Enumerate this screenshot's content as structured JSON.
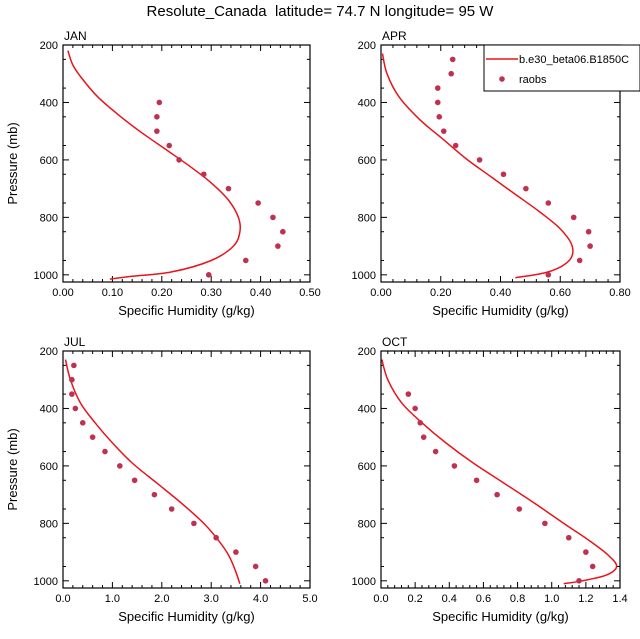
{
  "title": "Resolute_Canada  latitude= 74.7 N longitude= 95 W",
  "legend": {
    "model_label": "b.e30_beta06.B1850C",
    "obs_label": "raobs",
    "placement": "top-right of APR panel"
  },
  "colors": {
    "model": "#e8141c",
    "obs": "#c03050",
    "axis": "#000000"
  },
  "chart_data": [
    {
      "type": "line",
      "panel_label": "JAN",
      "xlabel": "Specific Humidity (g/kg)",
      "ylabel": "Pressure (mb)",
      "xlim": [
        0,
        0.5
      ],
      "ylim": [
        1025,
        200
      ],
      "y_inverted": true,
      "xticks": [
        "0.00",
        "0.10",
        "0.20",
        "0.30",
        "0.40",
        "0.50"
      ],
      "yticks": [
        "200",
        "400",
        "600",
        "800",
        "1000"
      ],
      "series": [
        {
          "name": "b.e30_beta06.B1850C",
          "style": "line",
          "points": [
            [
              0.01,
              220
            ],
            [
              0.02,
              270
            ],
            [
              0.04,
              320
            ],
            [
              0.07,
              380
            ],
            [
              0.11,
              440
            ],
            [
              0.155,
              500
            ],
            [
              0.205,
              560
            ],
            [
              0.255,
              620
            ],
            [
              0.3,
              680
            ],
            [
              0.335,
              740
            ],
            [
              0.355,
              800
            ],
            [
              0.358,
              850
            ],
            [
              0.345,
              900
            ],
            [
              0.3,
              950
            ],
            [
              0.22,
              990
            ],
            [
              0.14,
              1005
            ],
            [
              0.095,
              1015
            ]
          ]
        },
        {
          "name": "raobs",
          "style": "marker",
          "points": [
            [
              0.195,
              400
            ],
            [
              0.19,
              450
            ],
            [
              0.19,
              500
            ],
            [
              0.215,
              550
            ],
            [
              0.235,
              600
            ],
            [
              0.285,
              650
            ],
            [
              0.335,
              700
            ],
            [
              0.395,
              750
            ],
            [
              0.425,
              800
            ],
            [
              0.445,
              850
            ],
            [
              0.435,
              900
            ],
            [
              0.37,
              950
            ],
            [
              0.295,
              1000
            ]
          ]
        }
      ]
    },
    {
      "type": "line",
      "panel_label": "APR",
      "xlabel": "Specific Humidity (g/kg)",
      "ylabel": "",
      "xlim": [
        0,
        0.8
      ],
      "ylim": [
        1025,
        200
      ],
      "y_inverted": true,
      "xticks": [
        "0.00",
        "0.20",
        "0.40",
        "0.60",
        "0.80"
      ],
      "yticks": [
        "200",
        "400",
        "600",
        "800",
        "1000"
      ],
      "series": [
        {
          "name": "b.e30_beta06.B1850C",
          "style": "line",
          "points": [
            [
              0.005,
              230
            ],
            [
              0.02,
              300
            ],
            [
              0.06,
              380
            ],
            [
              0.13,
              460
            ],
            [
              0.21,
              530
            ],
            [
              0.29,
              600
            ],
            [
              0.37,
              660
            ],
            [
              0.45,
              720
            ],
            [
              0.53,
              780
            ],
            [
              0.6,
              840
            ],
            [
              0.64,
              900
            ],
            [
              0.63,
              950
            ],
            [
              0.56,
              990
            ],
            [
              0.45,
              1010
            ]
          ]
        },
        {
          "name": "raobs",
          "style": "marker",
          "points": [
            [
              0.24,
              250
            ],
            [
              0.235,
              300
            ],
            [
              0.19,
              350
            ],
            [
              0.19,
              400
            ],
            [
              0.195,
              450
            ],
            [
              0.21,
              500
            ],
            [
              0.25,
              550
            ],
            [
              0.33,
              600
            ],
            [
              0.41,
              650
            ],
            [
              0.485,
              700
            ],
            [
              0.56,
              750
            ],
            [
              0.645,
              800
            ],
            [
              0.695,
              850
            ],
            [
              0.7,
              900
            ],
            [
              0.665,
              950
            ],
            [
              0.56,
              1000
            ]
          ]
        }
      ]
    },
    {
      "type": "line",
      "panel_label": "JUL",
      "xlabel": "Specific Humidity (g/kg)",
      "ylabel": "Pressure (mb)",
      "xlim": [
        0,
        5.0
      ],
      "ylim": [
        1025,
        200
      ],
      "y_inverted": true,
      "xticks": [
        "0.0",
        "1.0",
        "2.0",
        "3.0",
        "4.0",
        "5.0"
      ],
      "yticks": [
        "200",
        "400",
        "600",
        "800",
        "1000"
      ],
      "series": [
        {
          "name": "b.e30_beta06.B1850C",
          "style": "line",
          "points": [
            [
              0.05,
              230
            ],
            [
              0.15,
              300
            ],
            [
              0.35,
              380
            ],
            [
              0.65,
              450
            ],
            [
              1.0,
              520
            ],
            [
              1.4,
              590
            ],
            [
              1.9,
              660
            ],
            [
              2.4,
              730
            ],
            [
              2.85,
              800
            ],
            [
              3.15,
              860
            ],
            [
              3.35,
              910
            ],
            [
              3.48,
              960
            ],
            [
              3.58,
              1010
            ]
          ]
        },
        {
          "name": "raobs",
          "style": "marker",
          "points": [
            [
              0.22,
              250
            ],
            [
              0.18,
              300
            ],
            [
              0.18,
              350
            ],
            [
              0.25,
              400
            ],
            [
              0.4,
              450
            ],
            [
              0.6,
              500
            ],
            [
              0.85,
              550
            ],
            [
              1.15,
              600
            ],
            [
              1.45,
              650
            ],
            [
              1.85,
              700
            ],
            [
              2.2,
              750
            ],
            [
              2.65,
              800
            ],
            [
              3.1,
              850
            ],
            [
              3.5,
              900
            ],
            [
              3.9,
              950
            ],
            [
              4.1,
              1000
            ]
          ]
        }
      ]
    },
    {
      "type": "line",
      "panel_label": "OCT",
      "xlabel": "Specific Humidity (g/kg)",
      "ylabel": "",
      "xlim": [
        0,
        1.4
      ],
      "ylim": [
        1025,
        200
      ],
      "y_inverted": true,
      "xticks": [
        "0.0",
        "0.2",
        "0.4",
        "0.6",
        "0.8",
        "1.0",
        "1.2",
        "1.4"
      ],
      "yticks": [
        "200",
        "400",
        "600",
        "800",
        "1000"
      ],
      "series": [
        {
          "name": "b.e30_beta06.B1850C",
          "style": "line",
          "points": [
            [
              0.005,
              230
            ],
            [
              0.04,
              300
            ],
            [
              0.12,
              380
            ],
            [
              0.24,
              450
            ],
            [
              0.38,
              520
            ],
            [
              0.54,
              590
            ],
            [
              0.72,
              660
            ],
            [
              0.9,
              730
            ],
            [
              1.07,
              800
            ],
            [
              1.22,
              860
            ],
            [
              1.33,
              910
            ],
            [
              1.38,
              950
            ],
            [
              1.32,
              980
            ],
            [
              1.18,
              1000
            ],
            [
              1.07,
              1010
            ]
          ]
        },
        {
          "name": "raobs",
          "style": "marker",
          "points": [
            [
              0.16,
              350
            ],
            [
              0.2,
              400
            ],
            [
              0.23,
              450
            ],
            [
              0.25,
              500
            ],
            [
              0.32,
              550
            ],
            [
              0.43,
              600
            ],
            [
              0.56,
              650
            ],
            [
              0.68,
              700
            ],
            [
              0.81,
              750
            ],
            [
              0.96,
              800
            ],
            [
              1.1,
              850
            ],
            [
              1.2,
              900
            ],
            [
              1.24,
              950
            ],
            [
              1.16,
              1000
            ]
          ]
        }
      ]
    }
  ]
}
